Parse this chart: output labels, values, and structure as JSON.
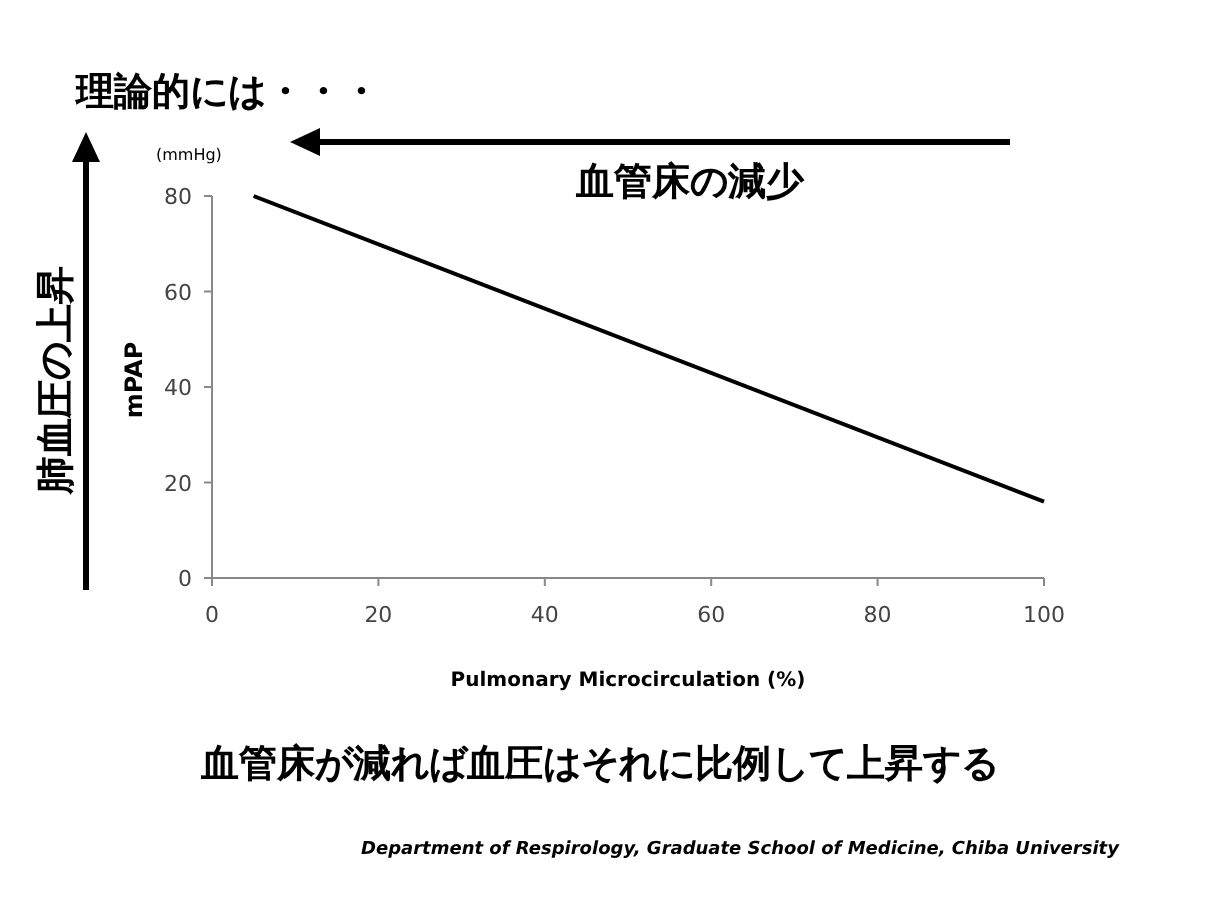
{
  "chart_data": {
    "type": "line",
    "title": "理論的には・・・",
    "xlabel": "Pulmonary Microcirculation (%)",
    "ylabel": "mPAP",
    "x": [
      5,
      100
    ],
    "series": [
      {
        "color": "#000000",
        "values": [
          80,
          16
        ]
      }
    ],
    "xlim": [
      0,
      100
    ],
    "xticks": [
      0,
      20,
      40,
      60,
      80,
      100
    ],
    "ylim": [
      0,
      80
    ],
    "yticks": [
      0,
      20,
      40,
      60,
      80
    ],
    "grid": false,
    "marker": "none",
    "line_style": "solid",
    "annotations": [
      "(mmHg)",
      "血管床の減少",
      "肺血圧の上昇",
      "血管床が減れば血圧はそれに比例して上昇する",
      "Department of Respirology, Graduate School of Medicine, Chiba University"
    ]
  }
}
